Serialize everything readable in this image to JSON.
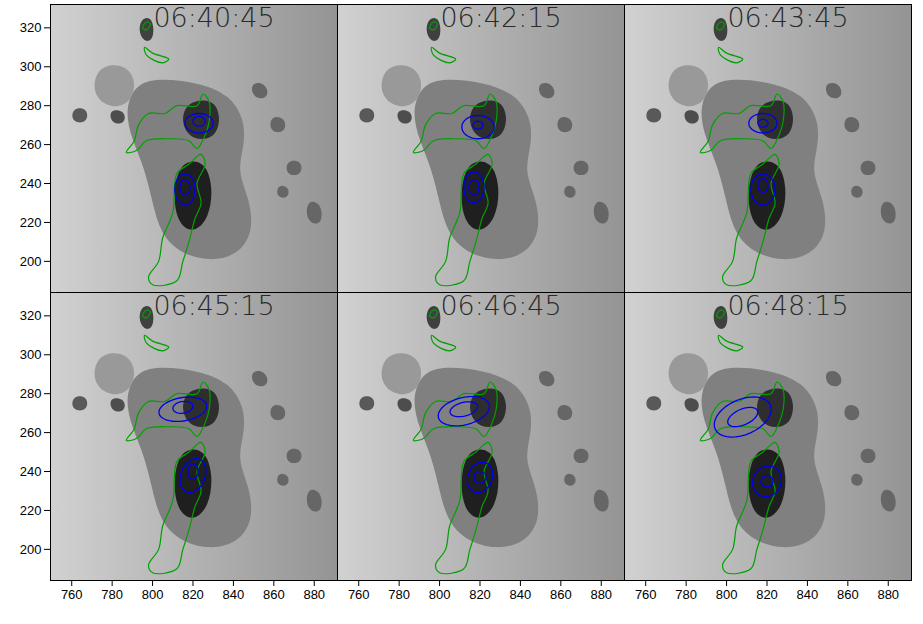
{
  "chart_data": {
    "type": "contour_overlay",
    "xlim": [
      749.5,
      891.5
    ],
    "ylim": [
      184,
      332
    ],
    "xticks": [
      760,
      780,
      800,
      820,
      840,
      860,
      880
    ],
    "yticks": [
      200,
      220,
      240,
      260,
      280,
      300,
      320
    ],
    "background": {
      "intensity": 0.8,
      "features": [
        {
          "intensity": 0.5,
          "points": [
            [
              792,
              292
            ],
            [
              805,
              294
            ],
            [
              822,
              292
            ],
            [
              838,
              286
            ],
            [
              846,
              272
            ],
            [
              845,
              258
            ],
            [
              842,
              246
            ],
            [
              848,
              232
            ],
            [
              850,
              215
            ],
            [
              842,
              203
            ],
            [
              828,
              200
            ],
            [
              814,
              204
            ],
            [
              804,
              214
            ],
            [
              800,
              230
            ],
            [
              796,
              248
            ],
            [
              790,
              262
            ],
            [
              786,
              278
            ]
          ]
        },
        {
          "intensity": 0.6,
          "points": [
            [
              772,
              300
            ],
            [
              785,
              302
            ],
            [
              792,
              294
            ],
            [
              790,
              282
            ],
            [
              780,
              278
            ],
            [
              770,
              285
            ]
          ]
        },
        {
          "intensity": 0.12,
          "points": [
            [
              814,
              252
            ],
            [
              826,
              252
            ],
            [
              830,
              238
            ],
            [
              828,
              222
            ],
            [
              820,
              214
            ],
            [
              812,
              220
            ],
            [
              810,
              236
            ]
          ]
        },
        {
          "intensity": 0.18,
          "points": [
            [
              816,
              282
            ],
            [
              830,
              284
            ],
            [
              834,
              274
            ],
            [
              831,
              263
            ],
            [
              820,
              262
            ],
            [
              814,
              270
            ]
          ]
        },
        {
          "intensity": 0.25,
          "points": [
            [
              794,
              325
            ],
            [
              800,
              326
            ],
            [
              801,
              315
            ],
            [
              797,
              312
            ],
            [
              793,
              317
            ]
          ]
        },
        {
          "intensity": 0.3,
          "points": [
            [
              778,
              278
            ],
            [
              786,
              278
            ],
            [
              787,
              271
            ],
            [
              780,
              270
            ]
          ]
        },
        {
          "intensity": 0.35,
          "points": [
            [
              760,
              279
            ],
            [
              768,
              279
            ],
            [
              768,
              271
            ],
            [
              760,
              271
            ]
          ]
        },
        {
          "intensity": 0.4,
          "points": [
            [
              848,
              292
            ],
            [
              856,
              292
            ],
            [
              858,
              284
            ],
            [
              850,
              283
            ]
          ]
        },
        {
          "intensity": 0.4,
          "points": [
            [
              858,
              275
            ],
            [
              866,
              274
            ],
            [
              866,
              266
            ],
            [
              858,
              266
            ]
          ]
        },
        {
          "intensity": 0.4,
          "points": [
            [
              866,
              252
            ],
            [
              874,
              252
            ],
            [
              874,
              244
            ],
            [
              866,
              244
            ]
          ]
        },
        {
          "intensity": 0.4,
          "points": [
            [
              876,
              232
            ],
            [
              884,
              230
            ],
            [
              884,
              218
            ],
            [
              876,
              220
            ]
          ]
        },
        {
          "intensity": 0.4,
          "points": [
            [
              862,
              240
            ],
            [
              868,
              238
            ],
            [
              867,
              232
            ],
            [
              861,
              233
            ]
          ]
        }
      ]
    },
    "static_contour": {
      "color": "#00a000",
      "paths": [
        [
          [
            825,
            286
          ],
          [
            822,
            280
          ],
          [
            812,
            280
          ],
          [
            806,
            276
          ],
          [
            798,
            276
          ],
          [
            793,
            270
          ],
          [
            791,
            262
          ],
          [
            787,
            256
          ],
          [
            792,
            257
          ],
          [
            797,
            262
          ],
          [
            808,
            263
          ],
          [
            818,
            262
          ],
          [
            822,
            258
          ],
          [
            826,
            265
          ],
          [
            828,
            272
          ],
          [
            828,
            282
          ]
        ],
        [
          [
            796,
            310
          ],
          [
            800,
            307
          ],
          [
            808,
            304
          ],
          [
            805,
            302
          ],
          [
            797,
            306
          ]
        ],
        [
          [
            795,
            320
          ],
          [
            797,
            323
          ],
          [
            799,
            322
          ],
          [
            797,
            319
          ]
        ],
        [
          [
            824,
            255
          ],
          [
            826,
            250
          ],
          [
            822,
            240
          ],
          [
            824,
            230
          ],
          [
            821,
            222
          ],
          [
            818,
            210
          ],
          [
            815,
            200
          ],
          [
            812,
            190
          ],
          [
            800,
            188
          ],
          [
            798,
            192
          ],
          [
            803,
            200
          ],
          [
            805,
            212
          ],
          [
            810,
            225
          ],
          [
            812,
            245
          ],
          [
            818,
            250
          ]
        ]
      ]
    },
    "panels": [
      {
        "title": "06:40:45",
        "contours": {
          "color": "#0000ee",
          "ellipses": [
            {
              "x": 823,
              "y": 271,
              "rx": 7,
              "ry": 5,
              "angle": 0
            },
            {
              "x": 823,
              "y": 272,
              "rx": 3,
              "ry": 2.5,
              "angle": 0
            },
            {
              "x": 816,
              "y": 237,
              "rx": 5,
              "ry": 8,
              "angle": 0
            },
            {
              "x": 816,
              "y": 238,
              "rx": 2.5,
              "ry": 4,
              "angle": 0
            }
          ]
        }
      },
      {
        "title": "06:42:15",
        "contours": {
          "color": "#0000ee",
          "ellipses": [
            {
              "x": 819,
              "y": 269,
              "rx": 8,
              "ry": 6,
              "angle": 0
            },
            {
              "x": 819,
              "y": 270,
              "rx": 2.5,
              "ry": 2,
              "angle": 0
            },
            {
              "x": 817,
              "y": 238,
              "rx": 5,
              "ry": 8,
              "angle": 0
            },
            {
              "x": 817,
              "y": 238,
              "rx": 2.5,
              "ry": 4,
              "angle": 0
            }
          ]
        }
      },
      {
        "title": "06:43:45",
        "contours": {
          "color": "#0000ee",
          "ellipses": [
            {
              "x": 818,
              "y": 271,
              "rx": 7,
              "ry": 5,
              "angle": 0
            },
            {
              "x": 818,
              "y": 271,
              "rx": 2.5,
              "ry": 2,
              "angle": 0
            },
            {
              "x": 818,
              "y": 237,
              "rx": 6,
              "ry": 8,
              "angle": 0
            },
            {
              "x": 818,
              "y": 239,
              "rx": 2.5,
              "ry": 3.5,
              "angle": 0
            }
          ]
        }
      },
      {
        "title": "06:45:15",
        "contours": {
          "color": "#0000ee",
          "ellipses": [
            {
              "x": 815,
              "y": 272,
              "rx": 12,
              "ry": 6,
              "angle": 10
            },
            {
              "x": 815,
              "y": 273,
              "rx": 5,
              "ry": 3,
              "angle": 10
            },
            {
              "x": 820,
              "y": 238,
              "rx": 6,
              "ry": 9,
              "angle": -20
            },
            {
              "x": 820,
              "y": 240,
              "rx": 2.5,
              "ry": 4,
              "angle": 0
            }
          ]
        }
      },
      {
        "title": "06:46:45",
        "contours": {
          "color": "#0000ee",
          "ellipses": [
            {
              "x": 812,
              "y": 271,
              "rx": 13,
              "ry": 7,
              "angle": 15
            },
            {
              "x": 812,
              "y": 272,
              "rx": 7,
              "ry": 3.5,
              "angle": 15
            },
            {
              "x": 820,
              "y": 237,
              "rx": 6,
              "ry": 8,
              "angle": -20
            },
            {
              "x": 820,
              "y": 237,
              "rx": 3,
              "ry": 3,
              "angle": 0
            }
          ]
        }
      },
      {
        "title": "06:48:15",
        "contours": {
          "color": "#0000ee",
          "ellipses": [
            {
              "x": 808,
              "y": 268,
              "rx": 15,
              "ry": 9,
              "angle": 25
            },
            {
              "x": 808,
              "y": 268,
              "rx": 8,
              "ry": 4,
              "angle": 25
            },
            {
              "x": 820,
              "y": 235,
              "rx": 7,
              "ry": 8,
              "angle": -20
            },
            {
              "x": 820,
              "y": 235,
              "rx": 3,
              "ry": 3,
              "angle": 0
            }
          ]
        }
      }
    ]
  }
}
